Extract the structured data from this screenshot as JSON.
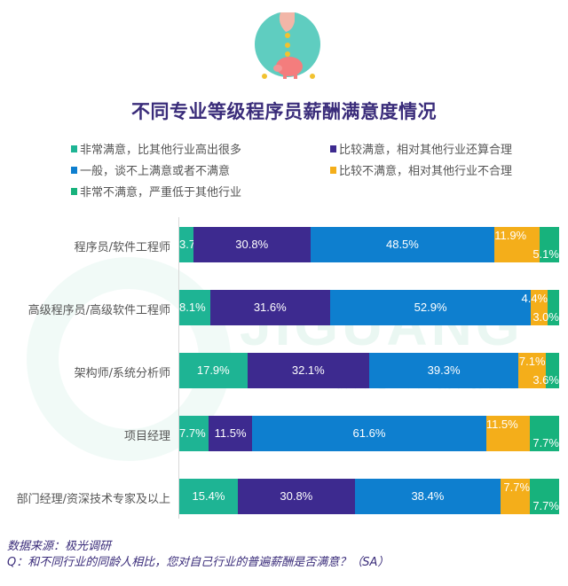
{
  "header": {
    "icon": "piggy-bank-icon",
    "title": "不同专业等级程序员薪酬满意度情况"
  },
  "legend": [
    {
      "label": "非常满意，比其他行业高出很多",
      "color": "#1eb494"
    },
    {
      "label": "比较满意，相对其他行业还算合理",
      "color": "#3d2a8f"
    },
    {
      "label": "一般，谈不上满意或者不满意",
      "color": "#0e7fcf"
    },
    {
      "label": "比较不满意，相对其他行业不合理",
      "color": "#f4ae1a"
    },
    {
      "label": "非常不满意，严重低于其他行业",
      "color": "#17b27c"
    }
  ],
  "watermark": {
    "main": "JIGUANG",
    "sub": "极光 数据服务"
  },
  "footer": {
    "source": "数据来源：极光调研",
    "question": "Q：和不同行业的同龄人相比，您对自己行业的普遍薪酬是否满意？（SA）"
  },
  "chart_data": {
    "type": "bar",
    "orientation": "horizontal",
    "stacked": true,
    "normalized": true,
    "title": "不同专业等级程序员薪酬满意度情况",
    "xlabel": "",
    "ylabel": "",
    "xlim": [
      0,
      100
    ],
    "grid": false,
    "legend_position": "top",
    "categories": [
      "程序员/软件工程师",
      "高级程序员/高级软件工程师",
      "架构师/系统分析师",
      "项目经理",
      "部门经理/资深技术专家及以上"
    ],
    "series": [
      {
        "name": "非常满意，比其他行业高出很多",
        "color": "#1eb494",
        "values": [
          3.7,
          8.1,
          17.9,
          7.7,
          15.4
        ]
      },
      {
        "name": "比较满意，相对其他行业还算合理",
        "color": "#3d2a8f",
        "values": [
          30.8,
          31.6,
          32.1,
          11.5,
          30.8
        ]
      },
      {
        "name": "一般，谈不上满意或者不满意",
        "color": "#0e7fcf",
        "values": [
          48.5,
          52.9,
          39.3,
          61.6,
          38.4
        ]
      },
      {
        "name": "比较不满意，相对其他行业不合理",
        "color": "#f4ae1a",
        "values": [
          11.9,
          4.4,
          7.1,
          11.5,
          7.7
        ]
      },
      {
        "name": "非常不满意，严重低于其他行业",
        "color": "#17b27c",
        "values": [
          5.1,
          3.0,
          3.6,
          7.7,
          7.7
        ]
      }
    ],
    "value_labels": [
      [
        "3.7%",
        "30.8%",
        "48.5%",
        "11.9%",
        "5.1%"
      ],
      [
        "8.1%",
        "31.6%",
        "52.9%",
        "4.4%",
        "3.0%"
      ],
      [
        "17.9%",
        "32.1%",
        "39.3%",
        "7.1%",
        "3.6%"
      ],
      [
        "7.7%",
        "11.5%",
        "61.6%",
        "11.5%",
        "7.7%"
      ],
      [
        "15.4%",
        "30.8%",
        "38.4%",
        "7.7%",
        "7.7%"
      ]
    ]
  }
}
